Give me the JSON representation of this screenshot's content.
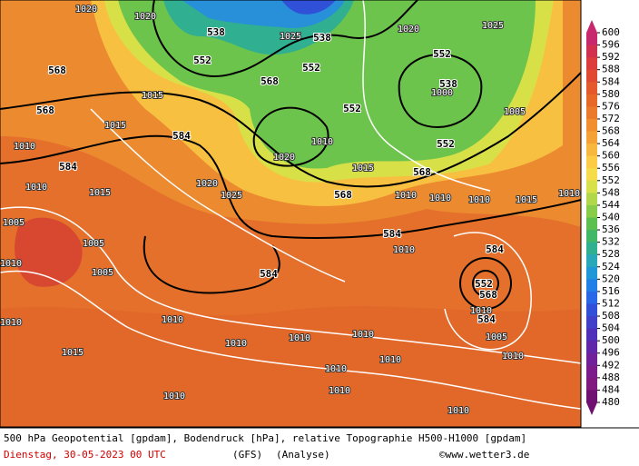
{
  "map": {
    "colorbar": {
      "levels": [
        600,
        596,
        592,
        588,
        584,
        580,
        576,
        572,
        568,
        564,
        560,
        556,
        552,
        548,
        544,
        540,
        536,
        532,
        528,
        524,
        520,
        516,
        512,
        508,
        504,
        500,
        496,
        492,
        488,
        484,
        480
      ],
      "colors": [
        "#c8286e",
        "#d2304f",
        "#dc3c3c",
        "#e04a32",
        "#e45a2c",
        "#e8682a",
        "#ec7a2c",
        "#f08e30",
        "#f4a236",
        "#f8b83e",
        "#fccc46",
        "#f4dc4a",
        "#d8e04a",
        "#b0d84a",
        "#88cc4a",
        "#5cc050",
        "#40b868",
        "#30b090",
        "#28a8b8",
        "#2098d8",
        "#2080e8",
        "#2868e8",
        "#3050d8",
        "#4040c8",
        "#5030b8",
        "#6028a8",
        "#702098",
        "#7c1c8c",
        "#801880",
        "#701070"
      ]
    },
    "contour_labels": [
      "1020",
      "1020",
      "538",
      "538",
      "552",
      "552",
      "552",
      "538",
      "568",
      "568",
      "568",
      "584",
      "584",
      "552",
      "552",
      "568",
      "568",
      "584",
      "584",
      "584",
      "552",
      "568",
      "584",
      "1025",
      "1025",
      "1020",
      "1015",
      "1015",
      "1010",
      "1010",
      "1015",
      "1020",
      "1025",
      "1020",
      "1010",
      "1005",
      "1000",
      "1010",
      "1010",
      "1010",
      "1005",
      "1005",
      "1010",
      "1010",
      "1010",
      "1010",
      "1010",
      "1010",
      "1010",
      "1010",
      "1010",
      "1010",
      "1010",
      "1005",
      "1015",
      "1015",
      "1010",
      "1005",
      "1010",
      "1010",
      "1010",
      "1015"
    ],
    "footer": {
      "line1": "500 hPa Geopotential [gpdam], Bodendruck [hPa], relative Topographie H500-H1000 [gpdam]",
      "date": "Dienstag, 30-05-2023  00 UTC",
      "model": "(GFS)",
      "run": "(Analyse)",
      "credit": "©www.wetter3.de"
    }
  }
}
